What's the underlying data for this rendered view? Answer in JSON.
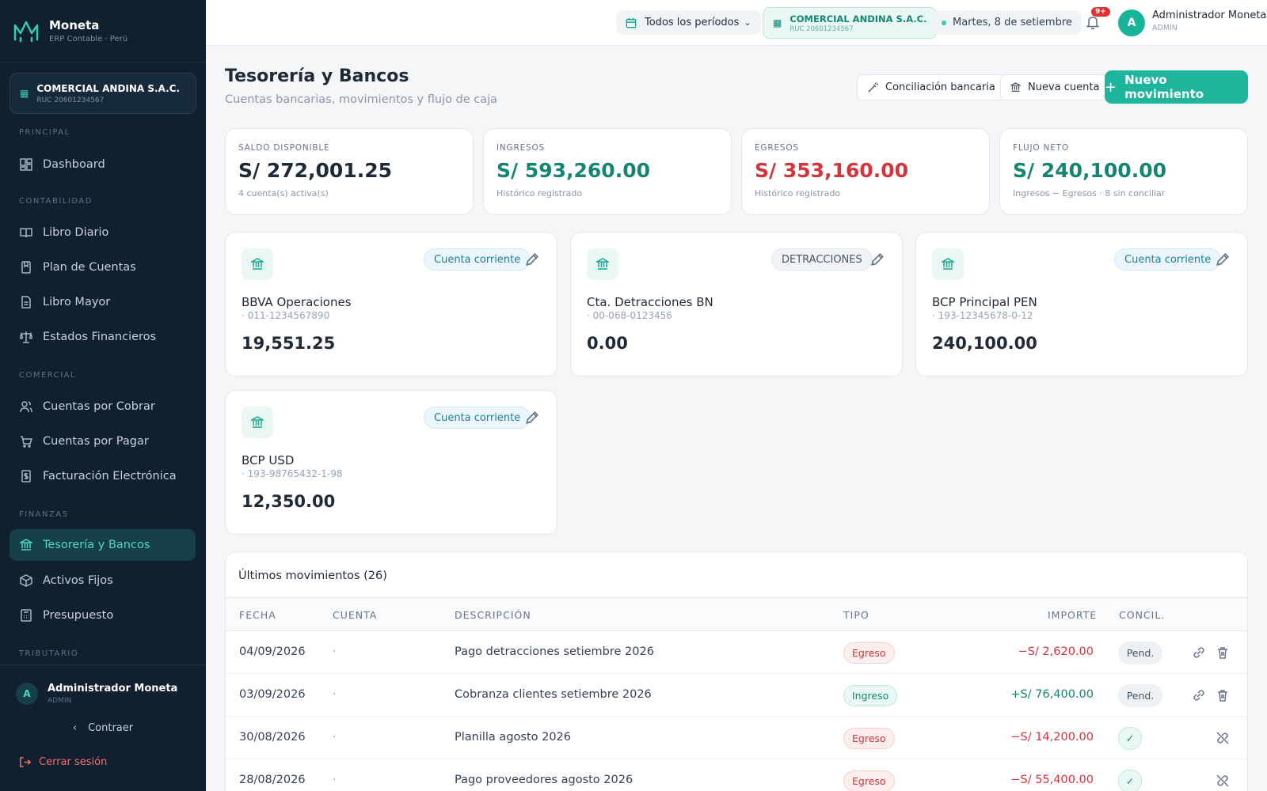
{
  "sidebar": {
    "brand": {
      "name": "Moneta",
      "subtitle": "ERP Contable · Perú"
    },
    "company": {
      "name": "COMERCIAL ANDINA S.A.C.",
      "ruc": "RUC 20601234567"
    },
    "sections": {
      "principal": "PRINCIPAL",
      "contabilidad": "CONTABILIDAD",
      "comercial": "COMERCIAL",
      "finanzas": "FINANZAS",
      "tributario": "TRIBUTARIO"
    },
    "items": {
      "dashboard": "Dashboard",
      "libro_diario": "Libro Diario",
      "plan_cuentas": "Plan de Cuentas",
      "libro_mayor": "Libro Mayor",
      "estados": "Estados Financieros",
      "cobrar": "Cuentas por Cobrar",
      "pagar": "Cuentas por Pagar",
      "facturacion": "Facturación Electrónica",
      "tesoreria": "Tesorería y Bancos",
      "activos": "Activos Fijos",
      "presupuesto": "Presupuesto"
    },
    "user": {
      "initial": "A",
      "name": "Administrador Moneta",
      "role": "ADMIN"
    },
    "collapse_label": "Contraer",
    "logout_label": "Cerrar sesión"
  },
  "topbar": {
    "period": "Todos los períodos",
    "company": {
      "name": "COMERCIAL ANDINA S.A.C.",
      "ruc": "RUC 20601234567"
    },
    "date": "Martes, 8 de setiembre",
    "notifications": "9+",
    "user": {
      "initial": "A",
      "name": "Administrador Moneta",
      "role": "ADMIN"
    }
  },
  "header": {
    "title": "Tesorería y Bancos",
    "subtitle": "Cuentas bancarias, movimientos y flujo de caja",
    "reconcile_label": "Conciliación bancaria",
    "new_account_label": "Nueva cuenta",
    "new_movement_label": "Nuevo movimiento"
  },
  "stats": [
    {
      "label": "SALDO DISPONIBLE",
      "value": "S/ 272,001.25",
      "note": "4 cuenta(s) activa(s)",
      "color": "#1f2a37"
    },
    {
      "label": "INGRESOS",
      "value": "S/ 593,260.00",
      "note": "Histórico registrado",
      "color": "#128672"
    },
    {
      "label": "EGRESOS",
      "value": "S/ 353,160.00",
      "note": "Histórico registrado",
      "color": "#d6333a"
    },
    {
      "label": "FLUJO NETO",
      "value": "S/ 240,100.00",
      "note": "Ingresos − Egresos · 8 sin conciliar",
      "color": "#128672"
    }
  ],
  "accounts": [
    {
      "badge": "Cuenta corriente",
      "name": "BBVA Operaciones",
      "number": "· 011-1234567890",
      "balance": "19,551.25"
    },
    {
      "badge": "DETRACCIONES",
      "name": "Cta. Detracciones BN",
      "number": "· 00-068-0123456",
      "balance": "0.00"
    },
    {
      "badge": "Cuenta corriente",
      "name": "BCP Principal PEN",
      "number": "· 193-12345678-0-12",
      "balance": "240,100.00"
    },
    {
      "badge": "Cuenta corriente",
      "name": "BCP USD",
      "number": "· 193-98765432-1-98",
      "balance": "12,350.00"
    }
  ],
  "movements": {
    "title": "Últimos movimientos (26)",
    "columns": {
      "fecha": "FECHA",
      "cuenta": "CUENTA",
      "descripcion": "DESCRIPCIÓN",
      "tipo": "TIPO",
      "importe": "IMPORTE",
      "concil": "CONCIL."
    },
    "rows": [
      {
        "fecha": "04/09/2026",
        "cuenta": "·",
        "descripcion": "Pago detracciones setiembre 2026",
        "tipo": "Egreso",
        "importe": "−S/ 2,620.00",
        "concil": "Pend."
      },
      {
        "fecha": "03/09/2026",
        "cuenta": "·",
        "descripcion": "Cobranza clientes setiembre 2026",
        "tipo": "Ingreso",
        "importe": "+S/ 76,400.00",
        "concil": "Pend."
      },
      {
        "fecha": "30/08/2026",
        "cuenta": "·",
        "descripcion": "Planilla agosto 2026",
        "tipo": "Egreso",
        "importe": "−S/ 14,200.00",
        "concil": "✓"
      },
      {
        "fecha": "28/08/2026",
        "cuenta": "·",
        "descripcion": "Pago proveedores agosto 2026",
        "tipo": "Egreso",
        "importe": "−S/ 55,400.00",
        "concil": "✓"
      }
    ]
  }
}
